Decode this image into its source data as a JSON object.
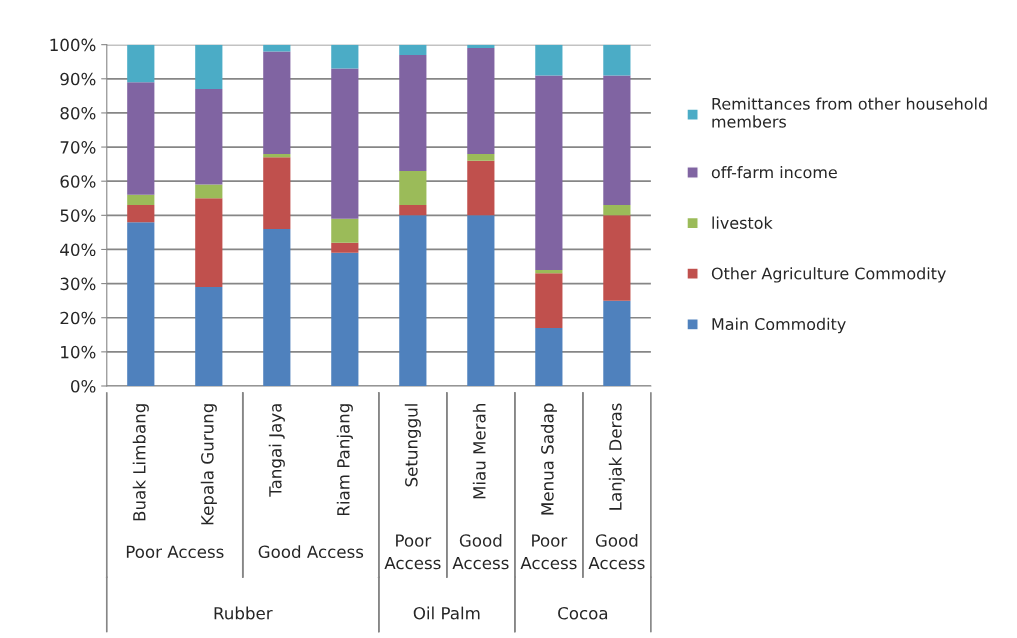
{
  "chart_data": {
    "type": "bar",
    "stacked": true,
    "categories": [
      "Buak Limbang",
      "Kepala Gurung",
      "Tangai Jaya",
      "Riam Panjang",
      "Setunggul",
      "Miau Merah",
      "Menua Sadap",
      "Lanjak Deras"
    ],
    "series": [
      {
        "name": "Main Commodity",
        "color": "#4f81bd",
        "values": [
          48,
          29,
          46,
          39,
          50,
          50,
          17,
          25
        ]
      },
      {
        "name": "Other Agriculture Commodity",
        "color": "#c0504d",
        "values": [
          5,
          26,
          21,
          3,
          3,
          16,
          16,
          25
        ]
      },
      {
        "name": "livestok",
        "color": "#9bbb59",
        "values": [
          3,
          4,
          1,
          7,
          10,
          2,
          1,
          3
        ]
      },
      {
        "name": "off-farm income",
        "color": "#8064a2",
        "values": [
          33,
          28,
          30,
          44,
          34,
          31,
          57,
          38
        ]
      },
      {
        "name": "Remittances from other household members",
        "color": "#4bacc6",
        "values": [
          11,
          13,
          2,
          7,
          3,
          1,
          9,
          9
        ]
      }
    ],
    "ylim": [
      0,
      100
    ],
    "yticks": [
      {
        "value": 0,
        "label": "0%"
      },
      {
        "value": 10,
        "label": "10%"
      },
      {
        "value": 20,
        "label": "20%"
      },
      {
        "value": 30,
        "label": "30%"
      },
      {
        "value": 40,
        "label": "40%"
      },
      {
        "value": 50,
        "label": "50%"
      },
      {
        "value": 60,
        "label": "60%"
      },
      {
        "value": 70,
        "label": "70%"
      },
      {
        "value": 80,
        "label": "80%"
      },
      {
        "value": 90,
        "label": "90%"
      },
      {
        "value": 100,
        "label": "100%"
      }
    ],
    "grid": "y",
    "legend": "right",
    "annotations": [
      "Poor Access",
      "Good Access",
      "Poor Access",
      "Good Access",
      "Poor Access",
      "Good Access",
      "Rubber",
      "Oil Palm",
      "Cocoa"
    ]
  }
}
